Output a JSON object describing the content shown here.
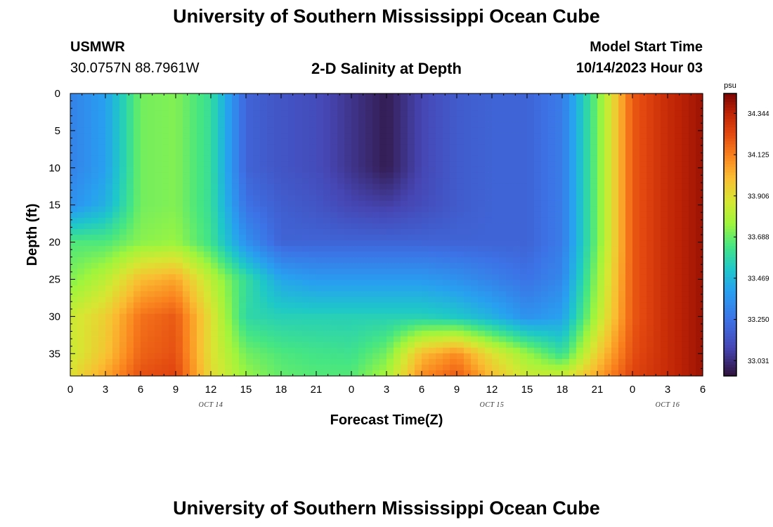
{
  "header": {
    "title": "University of Southern Mississippi Ocean Cube",
    "station": "USMWR",
    "coords": "30.0757N  88.7961W",
    "subtitle": "2-D Salinity at Depth",
    "model_label": "Model Start Time",
    "model_time": "10/14/2023 Hour 03"
  },
  "footer": {
    "title": "University of Southern Mississippi Ocean Cube"
  },
  "chart_data": {
    "type": "heatmap",
    "title": "2-D Salinity at Depth",
    "xlabel": "Forecast Time(Z)",
    "ylabel": "Depth (ft)",
    "x_tick_labels": [
      "0",
      "3",
      "6",
      "9",
      "12",
      "15",
      "18",
      "21",
      "0",
      "3",
      "6",
      "9",
      "12",
      "15",
      "18",
      "21",
      "0",
      "3",
      "6"
    ],
    "x_range_hours": [
      0,
      54
    ],
    "date_labels": [
      {
        "label": "OCT 14",
        "hour": 12
      },
      {
        "label": "OCT 15",
        "hour": 36
      },
      {
        "label": "OCT 16",
        "hour": 51
      }
    ],
    "y_ticks": [
      0,
      5,
      10,
      15,
      20,
      25,
      30,
      35
    ],
    "y_range": [
      0,
      38
    ],
    "y_inverted": true,
    "colorbar": {
      "unit": "psu",
      "labels": [
        "34.344",
        "34.125",
        "33.906",
        "33.688",
        "33.469",
        "33.250",
        "33.031"
      ],
      "colormap": "turbo",
      "range": [
        32.95,
        34.45
      ]
    },
    "salinity_grid": {
      "x_hours": [
        0,
        3,
        6,
        9,
        12,
        15,
        18,
        21,
        24,
        27,
        30,
        33,
        36,
        39,
        42,
        45,
        48,
        51,
        54
      ],
      "depths_ft": [
        0,
        5,
        10,
        15,
        20,
        25,
        30,
        35,
        38
      ],
      "values_psu": [
        [
          33.3,
          33.4,
          33.7,
          33.72,
          33.6,
          33.2,
          33.15,
          33.12,
          33.05,
          32.98,
          33.1,
          33.17,
          33.2,
          33.2,
          33.28,
          33.7,
          34.2,
          34.32,
          34.4
        ],
        [
          33.3,
          33.4,
          33.7,
          33.72,
          33.6,
          33.2,
          33.15,
          33.12,
          33.05,
          32.98,
          33.1,
          33.17,
          33.2,
          33.2,
          33.28,
          33.7,
          34.2,
          34.32,
          34.4
        ],
        [
          33.3,
          33.4,
          33.7,
          33.72,
          33.6,
          33.2,
          33.15,
          33.12,
          33.05,
          32.98,
          33.1,
          33.17,
          33.2,
          33.2,
          33.28,
          33.7,
          34.2,
          34.32,
          34.4
        ],
        [
          33.35,
          33.45,
          33.7,
          33.72,
          33.6,
          33.25,
          33.18,
          33.15,
          33.1,
          33.08,
          33.12,
          33.17,
          33.2,
          33.2,
          33.28,
          33.7,
          34.2,
          34.32,
          34.4
        ],
        [
          33.65,
          33.65,
          33.73,
          33.75,
          33.62,
          33.35,
          33.2,
          33.2,
          33.2,
          33.2,
          33.2,
          33.2,
          33.2,
          33.2,
          33.28,
          33.7,
          34.2,
          34.32,
          34.4
        ],
        [
          33.72,
          33.82,
          34.0,
          34.05,
          33.82,
          33.6,
          33.42,
          33.38,
          33.38,
          33.38,
          33.38,
          33.35,
          33.3,
          33.25,
          33.32,
          33.75,
          34.2,
          34.32,
          34.4
        ],
        [
          33.85,
          33.95,
          34.15,
          34.2,
          33.9,
          33.58,
          33.55,
          33.55,
          33.55,
          33.55,
          33.55,
          33.52,
          33.45,
          33.35,
          33.4,
          33.8,
          34.2,
          34.32,
          34.4
        ],
        [
          33.85,
          33.98,
          34.18,
          34.22,
          33.9,
          33.7,
          33.65,
          33.63,
          33.62,
          33.7,
          34.0,
          34.1,
          33.9,
          33.75,
          33.6,
          33.95,
          34.22,
          34.32,
          34.4
        ],
        [
          33.9,
          34.05,
          34.22,
          34.25,
          33.92,
          33.75,
          33.68,
          33.66,
          33.66,
          33.78,
          34.1,
          34.2,
          34.0,
          33.85,
          33.85,
          34.05,
          34.25,
          34.32,
          34.4
        ]
      ]
    }
  }
}
